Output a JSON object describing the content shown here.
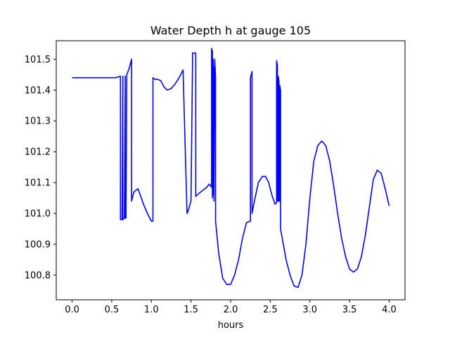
{
  "chart_data": {
    "type": "line",
    "title": "Water Depth h at gauge 105",
    "xlabel": "hours",
    "ylabel": "",
    "xlim": [
      -0.2,
      4.2
    ],
    "ylim": [
      100.72,
      101.56
    ],
    "xticks": [
      0.0,
      0.5,
      1.0,
      1.5,
      2.0,
      2.5,
      3.0,
      3.5,
      4.0
    ],
    "xtick_labels": [
      "0.0",
      "0.5",
      "1.0",
      "1.5",
      "2.0",
      "2.5",
      "3.0",
      "3.5",
      "4.0"
    ],
    "yticks": [
      100.8,
      100.9,
      101.0,
      101.1,
      101.2,
      101.3,
      101.4,
      101.5
    ],
    "ytick_labels": [
      "100.8",
      "100.9",
      "101.0",
      "101.1",
      "101.2",
      "101.3",
      "101.4",
      "101.5"
    ],
    "grid": false,
    "series": [
      {
        "color": "#0000ff",
        "x": [
          0.0,
          0.3,
          0.55,
          0.61,
          0.61,
          0.63,
          0.64,
          0.64,
          0.66,
          0.67,
          0.67,
          0.68,
          0.69,
          0.69,
          0.72,
          0.75,
          0.75,
          0.78,
          0.83,
          0.86,
          0.9,
          0.95,
          1.0,
          1.02,
          1.02,
          1.04,
          1.08,
          1.12,
          1.16,
          1.2,
          1.25,
          1.3,
          1.35,
          1.4,
          1.45,
          1.46,
          1.46,
          1.5,
          1.52,
          1.52,
          1.56,
          1.56,
          1.6,
          1.65,
          1.7,
          1.73,
          1.76,
          1.76,
          1.77,
          1.77,
          1.78,
          1.78,
          1.79,
          1.79,
          1.8,
          1.8,
          1.81,
          1.81,
          1.85,
          1.9,
          1.95,
          2.0,
          2.05,
          2.1,
          2.15,
          2.2,
          2.25,
          2.25,
          2.27,
          2.27,
          2.3,
          2.35,
          2.4,
          2.44,
          2.48,
          2.52,
          2.56,
          2.58,
          2.58,
          2.59,
          2.59,
          2.6,
          2.6,
          2.61,
          2.61,
          2.62,
          2.62,
          2.63,
          2.63,
          2.7,
          2.75,
          2.8,
          2.85,
          2.9,
          2.95,
          3.0,
          3.05,
          3.1,
          3.15,
          3.2,
          3.25,
          3.3,
          3.35,
          3.4,
          3.45,
          3.5,
          3.55,
          3.6,
          3.65,
          3.7,
          3.75,
          3.8,
          3.85,
          3.9,
          3.95,
          4.0
        ],
        "y": [
          101.44,
          101.44,
          101.44,
          101.445,
          100.98,
          100.98,
          101.445,
          100.98,
          100.985,
          101.445,
          100.985,
          100.985,
          101.44,
          101.45,
          101.47,
          101.5,
          101.04,
          101.07,
          101.08,
          101.06,
          101.03,
          101.0,
          100.975,
          100.975,
          101.44,
          101.435,
          101.435,
          101.43,
          101.41,
          101.4,
          101.405,
          101.42,
          101.44,
          101.465,
          101.0,
          101.005,
          101.005,
          101.04,
          101.5,
          101.52,
          101.52,
          101.055,
          101.065,
          101.075,
          101.085,
          101.095,
          101.085,
          101.535,
          101.525,
          101.05,
          101.5,
          101.06,
          101.475,
          101.04,
          101.5,
          101.5,
          101.44,
          100.975,
          100.87,
          100.79,
          100.77,
          100.77,
          100.8,
          100.85,
          100.92,
          100.97,
          100.975,
          101.44,
          101.46,
          101.0,
          101.04,
          101.1,
          101.12,
          101.12,
          101.1,
          101.06,
          101.03,
          101.035,
          101.495,
          101.48,
          101.04,
          101.04,
          101.445,
          101.43,
          101.04,
          101.04,
          101.415,
          101.4,
          100.95,
          100.85,
          100.8,
          100.765,
          100.76,
          100.8,
          100.9,
          101.05,
          101.17,
          101.22,
          101.235,
          101.22,
          101.17,
          101.09,
          101.0,
          100.92,
          100.86,
          100.82,
          100.81,
          100.82,
          100.86,
          100.93,
          101.02,
          101.11,
          101.14,
          101.13,
          101.08,
          101.025
        ]
      }
    ]
  }
}
